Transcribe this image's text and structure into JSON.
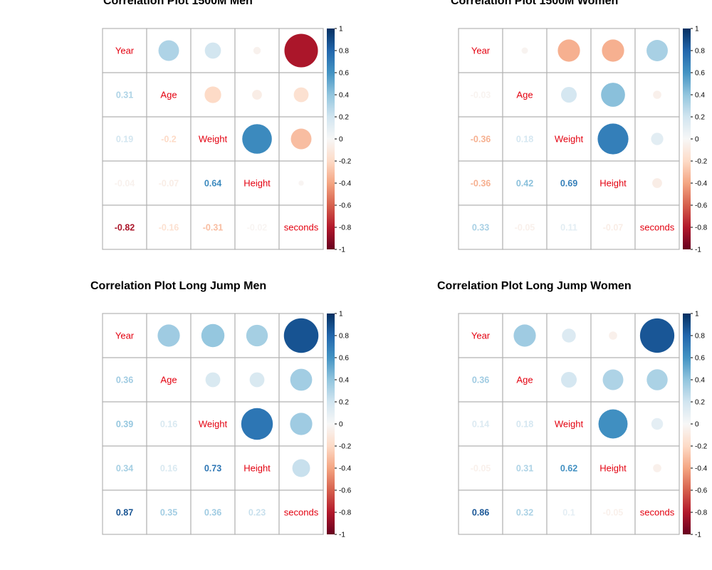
{
  "chart_data": [
    {
      "type": "heatmap",
      "title": "Correlation Plot 1500M Men",
      "variables": [
        "Year",
        "Age",
        "Weight",
        "Height",
        "seconds"
      ],
      "upper_shape": "circle",
      "lower_shape": "number",
      "color_scale": {
        "min": -1,
        "max": 1,
        "ticks": [
          1,
          0.8,
          0.6,
          0.4,
          0.2,
          0,
          -0.2,
          -0.4,
          -0.6,
          -0.8,
          -1
        ]
      },
      "lower_labels": [
        [
          "0.31"
        ],
        [
          "0.19",
          "-0.2"
        ],
        [
          "-0.04",
          "-0.07",
          "0.64"
        ],
        [
          "-0.82",
          "-0.16",
          "-0.31",
          "-0.02"
        ]
      ],
      "matrix": [
        [
          1,
          0.31,
          0.19,
          -0.04,
          -0.82
        ],
        [
          0.31,
          1,
          -0.2,
          -0.07,
          -0.16
        ],
        [
          0.19,
          -0.2,
          1,
          0.64,
          -0.31
        ],
        [
          -0.04,
          -0.07,
          0.64,
          1,
          -0.02
        ],
        [
          -0.82,
          -0.16,
          -0.31,
          -0.02,
          1
        ]
      ]
    },
    {
      "type": "heatmap",
      "title": "Correlation Plot 1500M Women",
      "variables": [
        "Year",
        "Age",
        "Weight",
        "Height",
        "seconds"
      ],
      "upper_shape": "circle",
      "lower_shape": "number",
      "color_scale": {
        "min": -1,
        "max": 1,
        "ticks": [
          1,
          0.8,
          0.6,
          0.4,
          0.2,
          0,
          -0.2,
          -0.4,
          -0.6,
          -0.8,
          -1
        ]
      },
      "lower_labels": [
        [
          "-0.03"
        ],
        [
          "-0.36",
          "0.18"
        ],
        [
          "-0.36",
          "0.42",
          "0.69"
        ],
        [
          "0.33",
          "-0.05",
          "0.11",
          "-0.07"
        ]
      ],
      "matrix": [
        [
          1,
          -0.03,
          -0.36,
          -0.36,
          0.33
        ],
        [
          -0.03,
          1,
          0.18,
          0.42,
          -0.05
        ],
        [
          -0.36,
          0.18,
          1,
          0.69,
          0.11
        ],
        [
          -0.36,
          0.42,
          0.69,
          1,
          -0.07
        ],
        [
          0.33,
          -0.05,
          0.11,
          -0.07,
          1
        ]
      ]
    },
    {
      "type": "heatmap",
      "title": "Correlation Plot Long Jump Men",
      "variables": [
        "Year",
        "Age",
        "Weight",
        "Height",
        "seconds"
      ],
      "upper_shape": "circle",
      "lower_shape": "number",
      "color_scale": {
        "min": -1,
        "max": 1,
        "ticks": [
          1,
          0.8,
          0.6,
          0.4,
          0.2,
          0,
          -0.2,
          -0.4,
          -0.6,
          -0.8,
          -1
        ]
      },
      "lower_labels": [
        [
          "0.36"
        ],
        [
          "0.39",
          "0.16"
        ],
        [
          "0.34",
          "0.16",
          "0.73"
        ],
        [
          "0.87",
          "0.35",
          "0.36",
          "0.23"
        ]
      ],
      "matrix": [
        [
          1,
          0.36,
          0.39,
          0.34,
          0.87
        ],
        [
          0.36,
          1,
          0.16,
          0.16,
          0.35
        ],
        [
          0.39,
          0.16,
          1,
          0.73,
          0.36
        ],
        [
          0.34,
          0.16,
          0.73,
          1,
          0.23
        ],
        [
          0.87,
          0.35,
          0.36,
          0.23,
          1
        ]
      ]
    },
    {
      "type": "heatmap",
      "title": "Correlation Plot Long Jump Women",
      "variables": [
        "Year",
        "Age",
        "Weight",
        "Height",
        "seconds"
      ],
      "upper_shape": "circle",
      "lower_shape": "number",
      "color_scale": {
        "min": -1,
        "max": 1,
        "ticks": [
          1,
          0.8,
          0.6,
          0.4,
          0.2,
          0,
          -0.2,
          -0.4,
          -0.6,
          -0.8,
          -1
        ]
      },
      "lower_labels": [
        [
          "0.36"
        ],
        [
          "0.14",
          "0.18"
        ],
        [
          "-0.05",
          "0.31",
          "0.62"
        ],
        [
          "0.86",
          "0.32",
          "0.1",
          "-0.05"
        ]
      ],
      "matrix": [
        [
          1,
          0.36,
          0.14,
          -0.05,
          0.86
        ],
        [
          0.36,
          1,
          0.18,
          0.31,
          0.32
        ],
        [
          0.14,
          0.18,
          1,
          0.62,
          0.1
        ],
        [
          -0.05,
          0.31,
          0.62,
          1,
          -0.05
        ],
        [
          0.86,
          0.32,
          0.1,
          -0.05,
          1
        ]
      ]
    }
  ]
}
